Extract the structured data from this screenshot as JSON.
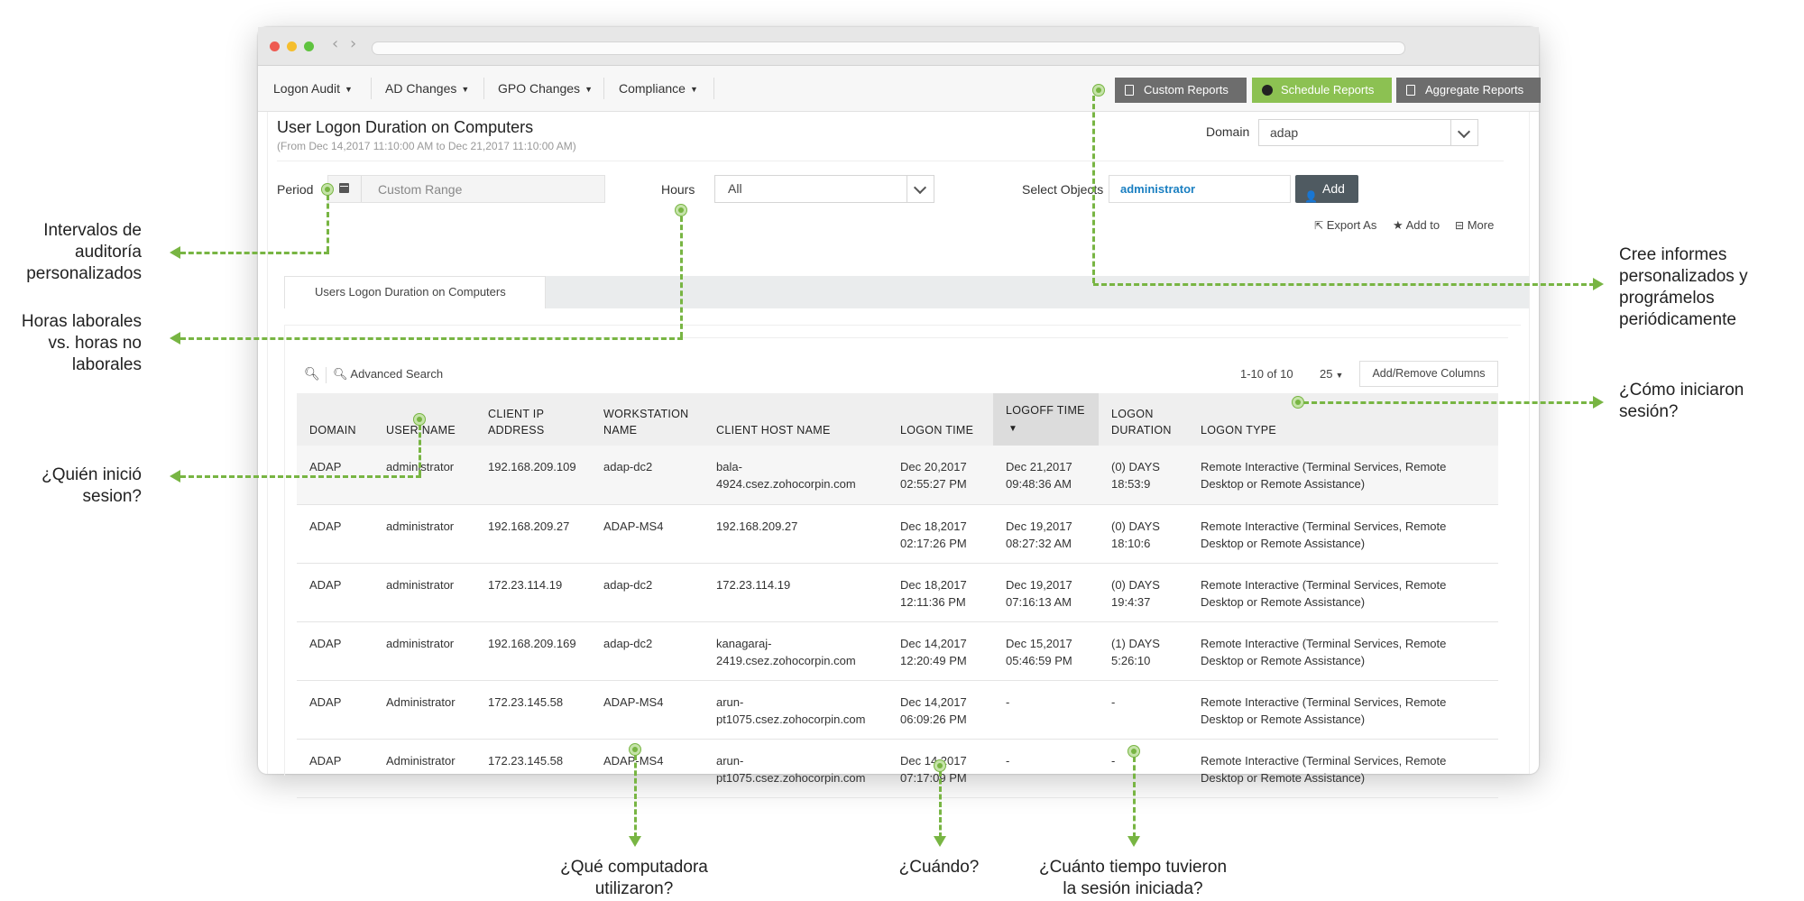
{
  "window": {
    "nav_back": "‹",
    "nav_forward": "›"
  },
  "menu": [
    {
      "label": "Logon Audit"
    },
    {
      "label": "AD Changes"
    },
    {
      "label": "GPO Changes"
    },
    {
      "label": "Compliance"
    }
  ],
  "top_buttons": {
    "custom": "Custom Reports",
    "schedule": "Schedule Reports",
    "aggregate": "Aggregate Reports"
  },
  "colors": {
    "accent_green": "#78b543",
    "button_gray": "#6d6d6d",
    "schedule_green": "#8cc152"
  },
  "report": {
    "title": "User Logon Duration on Computers",
    "subtitle": "(From Dec 14,2017 11:10:00 AM to Dec 21,2017 11:10:00 AM)",
    "domain_label": "Domain",
    "domain_value": "adap",
    "period_label": "Period",
    "period_value": "Custom Range",
    "hours_label": "Hours",
    "hours_value": "All",
    "select_objects_label": "Select Objects",
    "select_objects_value": "administrator",
    "add_button": "Add",
    "export_as": "Export As",
    "add_to": "Add to",
    "more": "More",
    "tab": "Users Logon Duration on Computers"
  },
  "grid": {
    "advanced_search": "Advanced Search",
    "pagination": "1-10 of 10",
    "page_size": "25",
    "add_remove_columns": "Add/Remove Columns",
    "columns": [
      "DOMAIN",
      "USER NAME",
      "CLIENT IP ADDRESS",
      "WORKSTATION NAME",
      "CLIENT HOST NAME",
      "LOGON TIME",
      "LOGOFF TIME",
      "LOGON DURATION",
      "LOGON TYPE"
    ],
    "rows": [
      [
        "ADAP",
        "administrator",
        "192.168.209.109",
        "adap-dc2",
        "bala-4924.csez.zohocorpin.com",
        "Dec 20,2017 02:55:27 PM",
        "Dec 21,2017 09:48:36 AM",
        "(0) DAYS 18:53:9",
        "Remote Interactive (Terminal Services, Remote Desktop or Remote Assistance)"
      ],
      [
        "ADAP",
        "administrator",
        "192.168.209.27",
        "ADAP-MS4",
        "192.168.209.27",
        "Dec 18,2017 02:17:26 PM",
        "Dec 19,2017 08:27:32 AM",
        "(0) DAYS 18:10:6",
        "Remote Interactive (Terminal Services, Remote Desktop or Remote Assistance)"
      ],
      [
        "ADAP",
        "administrator",
        "172.23.114.19",
        "adap-dc2",
        "172.23.114.19",
        "Dec 18,2017 12:11:36 PM",
        "Dec 19,2017 07:16:13 AM",
        "(0) DAYS 19:4:37",
        "Remote Interactive (Terminal Services, Remote Desktop or Remote Assistance)"
      ],
      [
        "ADAP",
        "administrator",
        "192.168.209.169",
        "adap-dc2",
        "kanagaraj-2419.csez.zohocorpin.com",
        "Dec 14,2017 12:20:49 PM",
        "Dec 15,2017 05:46:59 PM",
        "(1) DAYS 5:26:10",
        "Remote Interactive (Terminal Services, Remote Desktop or Remote Assistance)"
      ],
      [
        "ADAP",
        "Administrator",
        "172.23.145.58",
        "ADAP-MS4",
        "arun-pt1075.csez.zohocorpin.com",
        "Dec 14,2017 06:09:26 PM",
        "-",
        "-",
        "Remote Interactive (Terminal Services, Remote Desktop or Remote Assistance)"
      ],
      [
        "ADAP",
        "Administrator",
        "172.23.145.58",
        "ADAP-MS4",
        "arun-pt1075.csez.zohocorpin.com",
        "Dec 14,2017 07:17:09 PM",
        "-",
        "-",
        "Remote Interactive (Terminal Services, Remote Desktop or Remote Assistance)"
      ]
    ]
  },
  "annotations": {
    "intervals": "Intervalos de\nauditoría\npersonalizados",
    "hours": "Horas laborales\nvs. horas no\nlaborales",
    "who": "¿Quién inició\nsesion?",
    "reports": "Cree informes\npersonalizados y\nprográmelos\nperiódicamente",
    "how": "¿Cómo iniciaron\nsesión?",
    "computer": "¿Qué computadora\nutilizaron?",
    "when": "¿Cuándo?",
    "how_long": "¿Cuánto tiempo tuvieron\nla sesión iniciada?"
  }
}
